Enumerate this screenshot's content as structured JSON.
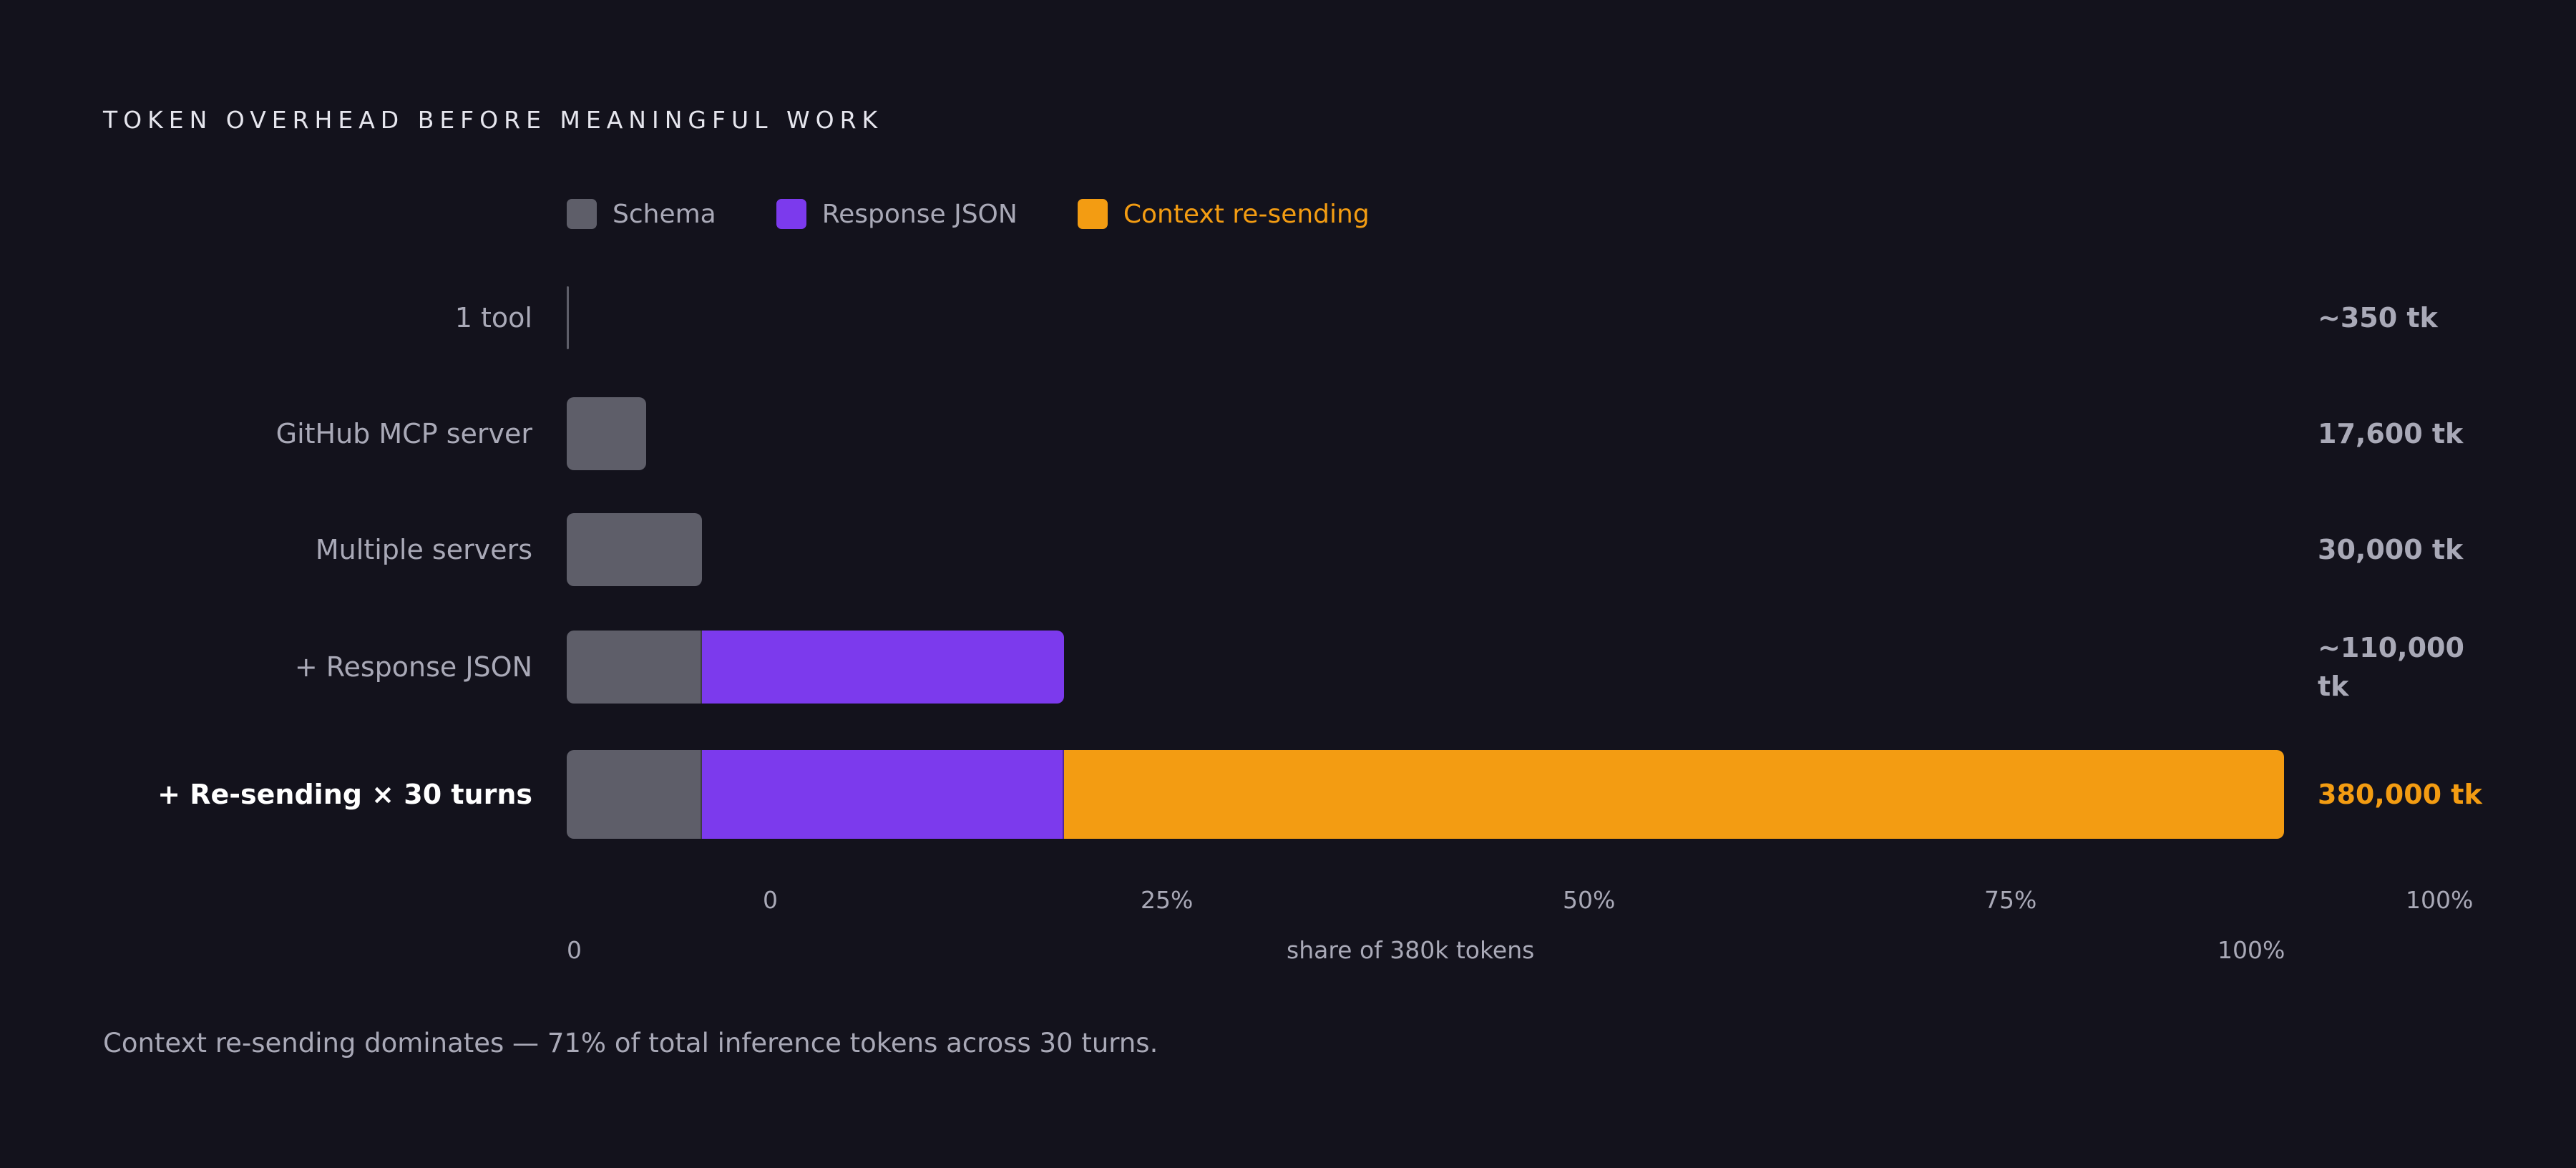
{
  "chart_data": {
    "type": "bar",
    "stacked": true,
    "orientation": "horizontal",
    "title": "TOKEN OVERHEAD BEFORE MEANINGFUL WORK",
    "legend": [
      {
        "name": "Schema",
        "color": "#5e5e69",
        "highlight": false
      },
      {
        "name": "Response JSON",
        "color": "#7c3aed",
        "highlight": false
      },
      {
        "name": "Context re-sending",
        "color": "#f39c12",
        "highlight": true
      }
    ],
    "xlim": [
      0,
      380000
    ],
    "categories": [
      {
        "label": "1 tool",
        "total_label": "~350 tk",
        "values": [
          350,
          0,
          0
        ],
        "emphasis": false
      },
      {
        "label": "GitHub MCP server",
        "total_label": "17,600 tk",
        "values": [
          17600,
          0,
          0
        ],
        "emphasis": false
      },
      {
        "label": "Multiple servers",
        "total_label": "30,000 tk",
        "values": [
          30000,
          0,
          0
        ],
        "emphasis": false
      },
      {
        "label": "+ Response JSON",
        "total_label": "~110,000 tk",
        "values": [
          30000,
          80000,
          0
        ],
        "emphasis": false
      },
      {
        "label": "+ Re-sending × 30 turns",
        "total_label": "380,000 tk",
        "values": [
          30000,
          80000,
          270000
        ],
        "emphasis": true
      }
    ],
    "tick_labels": [
      "0",
      "25%",
      "50%",
      "75%",
      "100%"
    ],
    "secondary_axis": {
      "start": "0",
      "label": "share of 380k tokens",
      "end": "100%"
    },
    "footnote": "Context re-sending dominates — 71% of total inference tokens across 30 turns."
  }
}
